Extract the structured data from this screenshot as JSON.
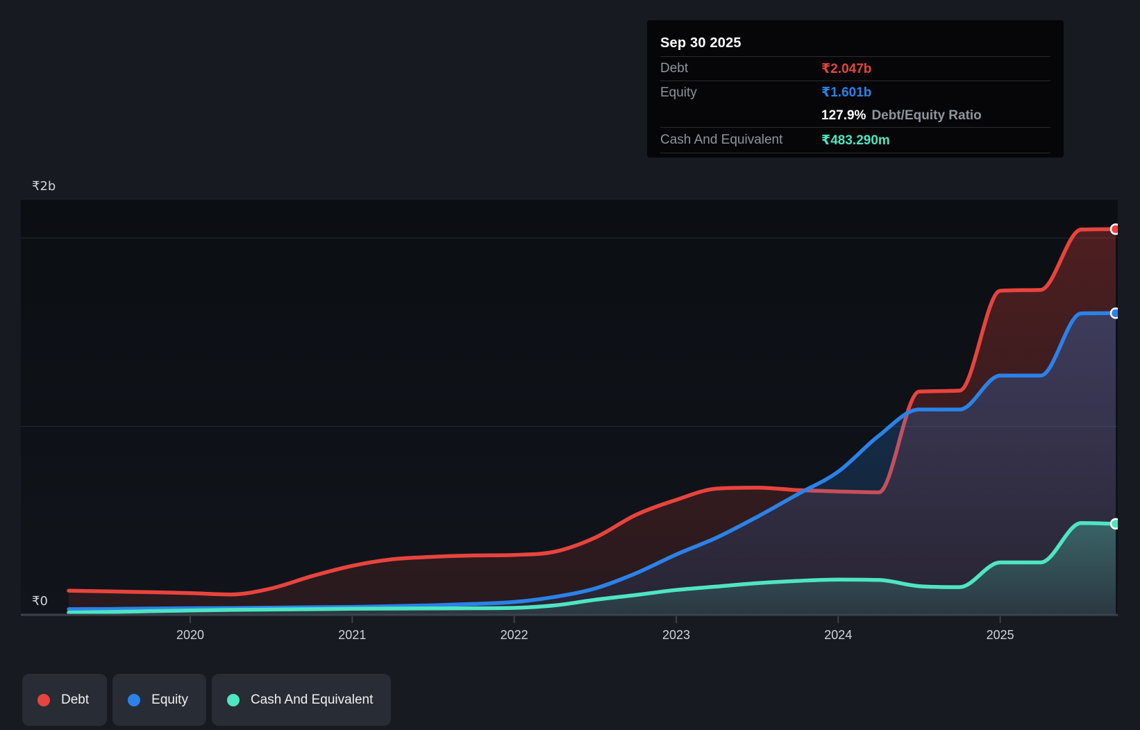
{
  "tooltip": {
    "date": "Sep 30 2025",
    "debt_label": "Debt",
    "debt_value": "₹2.047b",
    "equity_label": "Equity",
    "equity_value": "₹1.601b",
    "ratio_value": "127.9%",
    "ratio_suffix": "Debt/Equity Ratio",
    "cash_label": "Cash And Equivalent",
    "cash_value": "₹483.290m"
  },
  "legend": {
    "items": [
      {
        "label": "Debt",
        "color": "#e8443d"
      },
      {
        "label": "Equity",
        "color": "#2b82e8"
      },
      {
        "label": "Cash And Equivalent",
        "color": "#4ee5c2"
      }
    ]
  },
  "colors": {
    "debt": "#e8443d",
    "equity": "#2b82e8",
    "cash": "#4ee5c2",
    "axis": "#3b424c",
    "gridline": "#242a32",
    "plot_top_border": "#20252d",
    "tick_label": "#ced4db"
  },
  "chart_data": {
    "type": "area",
    "title": "",
    "xlabel": "",
    "ylabel": "",
    "x_unit": "decimal_year_quarterly",
    "ylim": [
      0,
      2.2
    ],
    "grid": "horizontal",
    "legend_position": "bottom",
    "x": [
      2019.25,
      2019.5,
      2019.75,
      2020,
      2020.25,
      2020.5,
      2020.75,
      2021,
      2021.25,
      2021.5,
      2021.75,
      2022,
      2022.25,
      2022.5,
      2022.75,
      2023,
      2023.25,
      2023.5,
      2023.75,
      2024,
      2024.25,
      2024.5,
      2024.75,
      2025,
      2025.25,
      2025.5,
      2025.75
    ],
    "series": [
      {
        "name": "Debt",
        "color": "#e8443d",
        "unit": "₹ billions",
        "final_label": "₹2.047b",
        "values": [
          0.128,
          0.124,
          0.12,
          0.115,
          0.108,
          0.14,
          0.205,
          0.26,
          0.295,
          0.308,
          0.315,
          0.318,
          0.335,
          0.41,
          0.53,
          0.61,
          0.67,
          0.675,
          0.662,
          0.655,
          0.65,
          1.185,
          1.19,
          1.72,
          1.725,
          2.045,
          2.047
        ]
      },
      {
        "name": "Equity",
        "color": "#2b82e8",
        "unit": "₹ billions",
        "final_label": "₹1.601b",
        "values": [
          0.03,
          0.031,
          0.033,
          0.035,
          0.036,
          0.038,
          0.04,
          0.042,
          0.046,
          0.051,
          0.058,
          0.068,
          0.095,
          0.14,
          0.22,
          0.32,
          0.41,
          0.52,
          0.64,
          0.76,
          0.95,
          1.09,
          1.09,
          1.27,
          1.27,
          1.6,
          1.601
        ]
      },
      {
        "name": "Cash And Equivalent",
        "color": "#4ee5c2",
        "unit": "₹ billions",
        "final_label": "₹483.290m",
        "values": [
          0.012,
          0.015,
          0.019,
          0.023,
          0.026,
          0.028,
          0.03,
          0.032,
          0.033,
          0.034,
          0.035,
          0.037,
          0.05,
          0.08,
          0.105,
          0.132,
          0.15,
          0.168,
          0.18,
          0.187,
          0.185,
          0.152,
          0.147,
          0.278,
          0.278,
          0.487,
          0.483
        ]
      }
    ],
    "xticks": [
      2020,
      2021,
      2022,
      2023,
      2024,
      2025
    ],
    "xtick_labels": [
      "2020",
      "2021",
      "2022",
      "2023",
      "2024",
      "2025"
    ],
    "yticks": [
      {
        "value": 2,
        "label": "₹2b"
      },
      {
        "value": 1,
        "label": ""
      },
      {
        "value": 0,
        "label": "₹0"
      }
    ]
  }
}
